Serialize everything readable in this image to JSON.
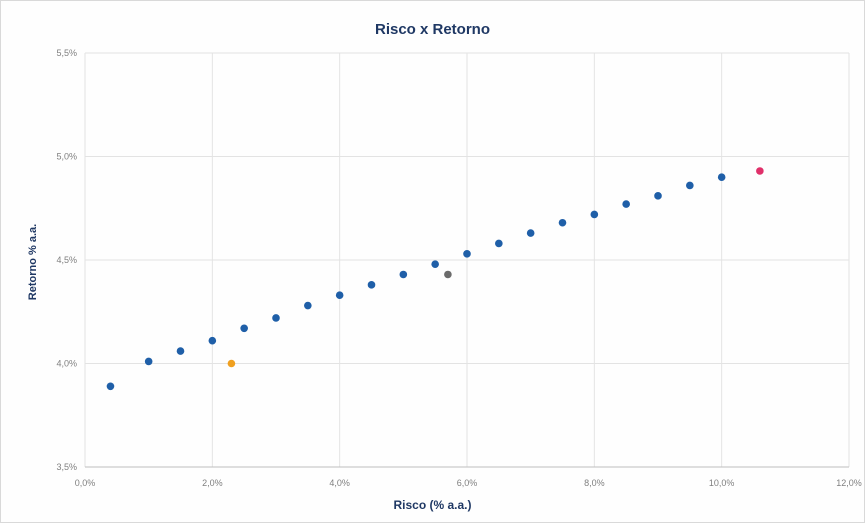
{
  "chart_data": {
    "type": "scatter",
    "title": "Risco x Retorno",
    "xlabel": "Risco (% a.a.)",
    "ylabel": "Retorno % a.a.",
    "xlim": [
      0.0,
      12.0
    ],
    "ylim": [
      3.5,
      5.5
    ],
    "x_ticks": [
      "0,0%",
      "2,0%",
      "4,0%",
      "6,0%",
      "8,0%",
      "10,0%",
      "12,0%"
    ],
    "y_ticks": [
      "3,5%",
      "4,0%",
      "4,5%",
      "5,0%",
      "5,5%"
    ],
    "x_tick_values": [
      0,
      2,
      4,
      6,
      8,
      10,
      12
    ],
    "y_tick_values": [
      3.5,
      4.0,
      4.5,
      5.0,
      5.5
    ],
    "grid": "vertical",
    "legend": "none",
    "series": [
      {
        "color": "#1f5fa8",
        "points": [
          {
            "x": 0.4,
            "y": 3.89
          },
          {
            "x": 1.0,
            "y": 4.01
          },
          {
            "x": 1.5,
            "y": 4.06
          },
          {
            "x": 2.0,
            "y": 4.11
          },
          {
            "x": 2.5,
            "y": 4.17
          },
          {
            "x": 3.0,
            "y": 4.22
          },
          {
            "x": 3.5,
            "y": 4.28
          },
          {
            "x": 4.0,
            "y": 4.33
          },
          {
            "x": 4.5,
            "y": 4.38
          },
          {
            "x": 5.0,
            "y": 4.43
          },
          {
            "x": 5.5,
            "y": 4.48
          },
          {
            "x": 6.0,
            "y": 4.53
          },
          {
            "x": 6.5,
            "y": 4.58
          },
          {
            "x": 7.0,
            "y": 4.63
          },
          {
            "x": 7.5,
            "y": 4.68
          },
          {
            "x": 8.0,
            "y": 4.72
          },
          {
            "x": 8.5,
            "y": 4.77
          },
          {
            "x": 9.0,
            "y": 4.81
          },
          {
            "x": 9.5,
            "y": 4.86
          },
          {
            "x": 10.0,
            "y": 4.9
          }
        ]
      },
      {
        "color": "#f0a020",
        "points": [
          {
            "x": 2.3,
            "y": 4.0
          }
        ]
      },
      {
        "color": "#6b6b6b",
        "points": [
          {
            "x": 5.7,
            "y": 4.43
          }
        ]
      },
      {
        "color": "#e0306a",
        "points": [
          {
            "x": 10.6,
            "y": 4.93
          }
        ]
      }
    ]
  }
}
